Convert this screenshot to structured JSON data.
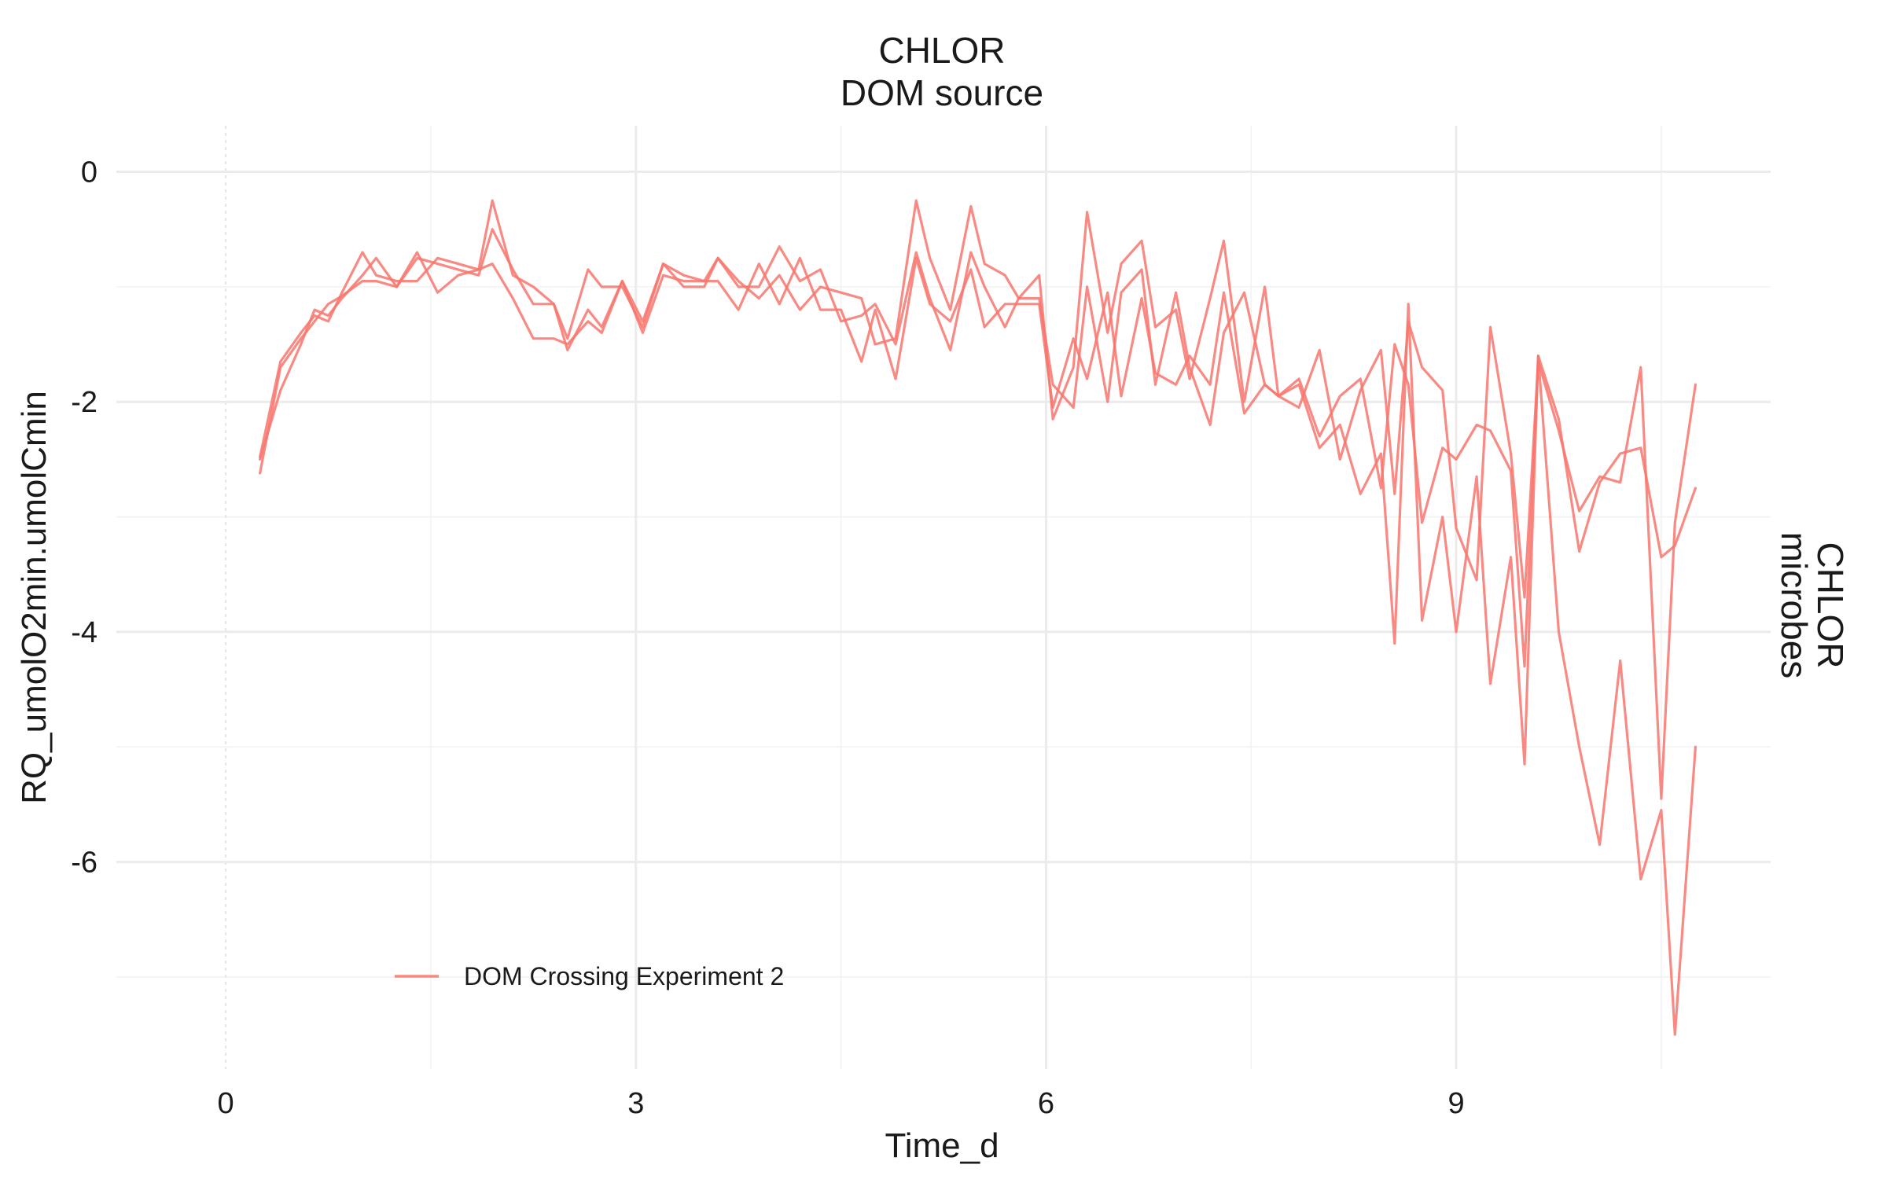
{
  "chart_data": {
    "type": "line",
    "title": "",
    "facet_top": [
      "CHLOR",
      "DOM source"
    ],
    "facet_right": [
      "CHLOR",
      "microbes"
    ],
    "xlabel": "Time_d",
    "ylabel": "RQ_umolO2min.umolCmin",
    "xlim": [
      -0.8,
      11.3
    ],
    "ylim": [
      -7.8,
      0.4
    ],
    "x_ticks": [
      0,
      3,
      6,
      9
    ],
    "x_tick_labels": [
      "0",
      "3",
      "6",
      "9"
    ],
    "y_ticks": [
      0,
      -2,
      -4,
      -6
    ],
    "y_tick_labels": [
      "0",
      "-2",
      "-4",
      "-6"
    ],
    "grid": true,
    "legend": {
      "position": "bottom-left",
      "entries": [
        "DOM Crossing Experiment 2"
      ]
    },
    "colors": {
      "series": "#F8766D"
    },
    "series": [
      {
        "name": "DOM Crossing Experiment 2",
        "x": [
          0.25,
          0.4,
          0.55,
          0.65,
          0.75,
          0.85,
          1.0,
          1.1,
          1.25,
          1.4,
          1.55,
          1.7,
          1.85,
          1.95,
          2.1,
          2.25,
          2.4,
          2.5,
          2.65,
          2.75,
          2.9,
          3.05,
          3.2,
          3.35,
          3.5,
          3.6,
          3.75,
          3.9,
          4.05,
          4.2,
          4.35,
          4.5,
          4.65,
          4.75,
          4.9,
          5.05,
          5.15,
          5.3,
          5.45,
          5.55,
          5.7,
          5.8,
          5.95,
          6.05,
          6.2,
          6.3,
          6.45,
          6.55,
          6.7,
          6.8,
          6.95,
          7.05,
          7.2,
          7.3,
          7.45,
          7.6,
          7.7,
          7.85,
          8.0,
          8.15,
          8.3,
          8.45,
          8.55,
          8.65,
          8.75,
          8.9,
          9.0,
          9.15,
          9.25,
          9.4,
          9.5,
          9.6,
          9.75,
          9.9,
          10.05,
          10.2,
          10.35,
          10.5,
          10.6,
          10.75
        ],
        "values": [
          -2.62,
          -1.7,
          -1.45,
          -1.3,
          -1.15,
          -1.08,
          -0.95,
          -0.95,
          -1.0,
          -0.75,
          -0.8,
          -0.85,
          -0.9,
          -0.5,
          -0.85,
          -1.15,
          -1.15,
          -1.55,
          -1.2,
          -1.35,
          -0.95,
          -1.3,
          -0.8,
          -0.9,
          -0.95,
          -0.75,
          -0.95,
          -1.1,
          -0.9,
          -1.2,
          -1.0,
          -1.05,
          -1.1,
          -1.5,
          -1.45,
          -0.25,
          -0.75,
          -1.2,
          -0.3,
          -0.8,
          -0.9,
          -1.1,
          -0.9,
          -2.15,
          -1.7,
          -0.35,
          -1.4,
          -0.8,
          -0.6,
          -1.35,
          -1.2,
          -1.8,
          -1.1,
          -0.6,
          -2.0,
          -1.0,
          -1.95,
          -1.85,
          -2.4,
          -2.2,
          -2.8,
          -2.45,
          -4.1,
          -1.15,
          -3.9,
          -3.0,
          -4.0,
          -2.65,
          -4.45,
          -3.35,
          -5.15,
          -1.6,
          -4.0,
          -5.0,
          -5.85,
          -4.25,
          -6.15,
          -5.55,
          -7.5,
          -5.0
        ]
      },
      {
        "name": "DOM Crossing Experiment 2",
        "x": [
          0.25,
          0.4,
          0.55,
          0.65,
          0.75,
          0.85,
          1.0,
          1.1,
          1.25,
          1.4,
          1.55,
          1.7,
          1.85,
          1.95,
          2.1,
          2.25,
          2.4,
          2.5,
          2.65,
          2.75,
          2.9,
          3.05,
          3.2,
          3.35,
          3.5,
          3.6,
          3.75,
          3.9,
          4.05,
          4.2,
          4.35,
          4.5,
          4.65,
          4.75,
          4.9,
          5.05,
          5.15,
          5.3,
          5.45,
          5.55,
          5.7,
          5.8,
          5.95,
          6.05,
          6.2,
          6.3,
          6.45,
          6.55,
          6.7,
          6.8,
          6.95,
          7.05,
          7.2,
          7.3,
          7.45,
          7.6,
          7.7,
          7.85,
          8.0,
          8.15,
          8.3,
          8.45,
          8.55,
          8.65,
          8.75,
          8.9,
          9.0,
          9.15,
          9.25,
          9.4,
          9.5,
          9.6,
          9.75,
          9.9,
          10.05,
          10.2,
          10.35,
          10.5,
          10.6,
          10.75
        ],
        "values": [
          -2.48,
          -1.65,
          -1.4,
          -1.25,
          -1.3,
          -1.05,
          -0.7,
          -0.9,
          -0.95,
          -0.95,
          -0.75,
          -0.8,
          -0.85,
          -0.25,
          -0.9,
          -1.0,
          -1.15,
          -1.45,
          -0.85,
          -1.0,
          -1.0,
          -1.35,
          -0.8,
          -1.0,
          -1.0,
          -0.75,
          -1.0,
          -1.0,
          -0.65,
          -0.95,
          -0.85,
          -1.3,
          -1.25,
          -1.15,
          -1.5,
          -0.7,
          -1.1,
          -1.55,
          -0.7,
          -1.0,
          -1.35,
          -1.1,
          -1.1,
          -1.85,
          -2.05,
          -1.0,
          -2.0,
          -1.05,
          -0.85,
          -1.85,
          -1.05,
          -1.7,
          -2.2,
          -1.4,
          -1.05,
          -1.85,
          -1.95,
          -1.8,
          -2.3,
          -1.95,
          -1.8,
          -2.75,
          -1.5,
          -1.85,
          -3.05,
          -2.4,
          -2.5,
          -2.2,
          -2.25,
          -2.6,
          -4.3,
          -1.6,
          -2.15,
          -3.3,
          -2.7,
          -2.45,
          -2.4,
          -3.35,
          -3.25,
          -2.75
        ]
      },
      {
        "name": "DOM Crossing Experiment 2",
        "x": [
          0.25,
          0.4,
          0.55,
          0.65,
          0.75,
          0.85,
          1.0,
          1.1,
          1.25,
          1.4,
          1.55,
          1.7,
          1.85,
          1.95,
          2.1,
          2.25,
          2.4,
          2.5,
          2.65,
          2.75,
          2.9,
          3.05,
          3.2,
          3.35,
          3.5,
          3.6,
          3.75,
          3.9,
          4.05,
          4.2,
          4.35,
          4.5,
          4.65,
          4.75,
          4.9,
          5.05,
          5.15,
          5.3,
          5.45,
          5.55,
          5.7,
          5.8,
          5.95,
          6.05,
          6.2,
          6.3,
          6.45,
          6.55,
          6.7,
          6.8,
          6.95,
          7.05,
          7.2,
          7.3,
          7.45,
          7.6,
          7.7,
          7.85,
          8.0,
          8.15,
          8.3,
          8.45,
          8.55,
          8.65,
          8.75,
          8.9,
          9.0,
          9.15,
          9.25,
          9.4,
          9.5,
          9.6,
          9.75,
          9.9,
          10.05,
          10.2,
          10.35,
          10.5,
          10.6,
          10.75
        ],
        "values": [
          -2.5,
          -1.9,
          -1.5,
          -1.2,
          -1.25,
          -1.1,
          -0.9,
          -0.75,
          -1.0,
          -0.7,
          -1.05,
          -0.9,
          -0.85,
          -0.8,
          -1.1,
          -1.45,
          -1.45,
          -1.5,
          -1.3,
          -1.4,
          -0.95,
          -1.4,
          -0.9,
          -0.95,
          -0.95,
          -0.95,
          -1.2,
          -0.8,
          -1.15,
          -0.75,
          -1.2,
          -1.2,
          -1.65,
          -1.2,
          -1.8,
          -0.75,
          -1.15,
          -1.3,
          -0.85,
          -1.35,
          -1.15,
          -1.15,
          -1.15,
          -2.05,
          -1.45,
          -1.8,
          -1.05,
          -1.95,
          -1.1,
          -1.75,
          -1.85,
          -1.6,
          -1.85,
          -1.05,
          -2.1,
          -1.85,
          -1.95,
          -2.05,
          -1.55,
          -2.5,
          -1.9,
          -1.55,
          -2.8,
          -1.3,
          -1.7,
          -1.9,
          -3.1,
          -3.55,
          -1.35,
          -2.45,
          -3.7,
          -1.65,
          -2.25,
          -2.95,
          -2.65,
          -2.7,
          -1.7,
          -5.45,
          -3.05,
          -1.85
        ]
      }
    ]
  }
}
